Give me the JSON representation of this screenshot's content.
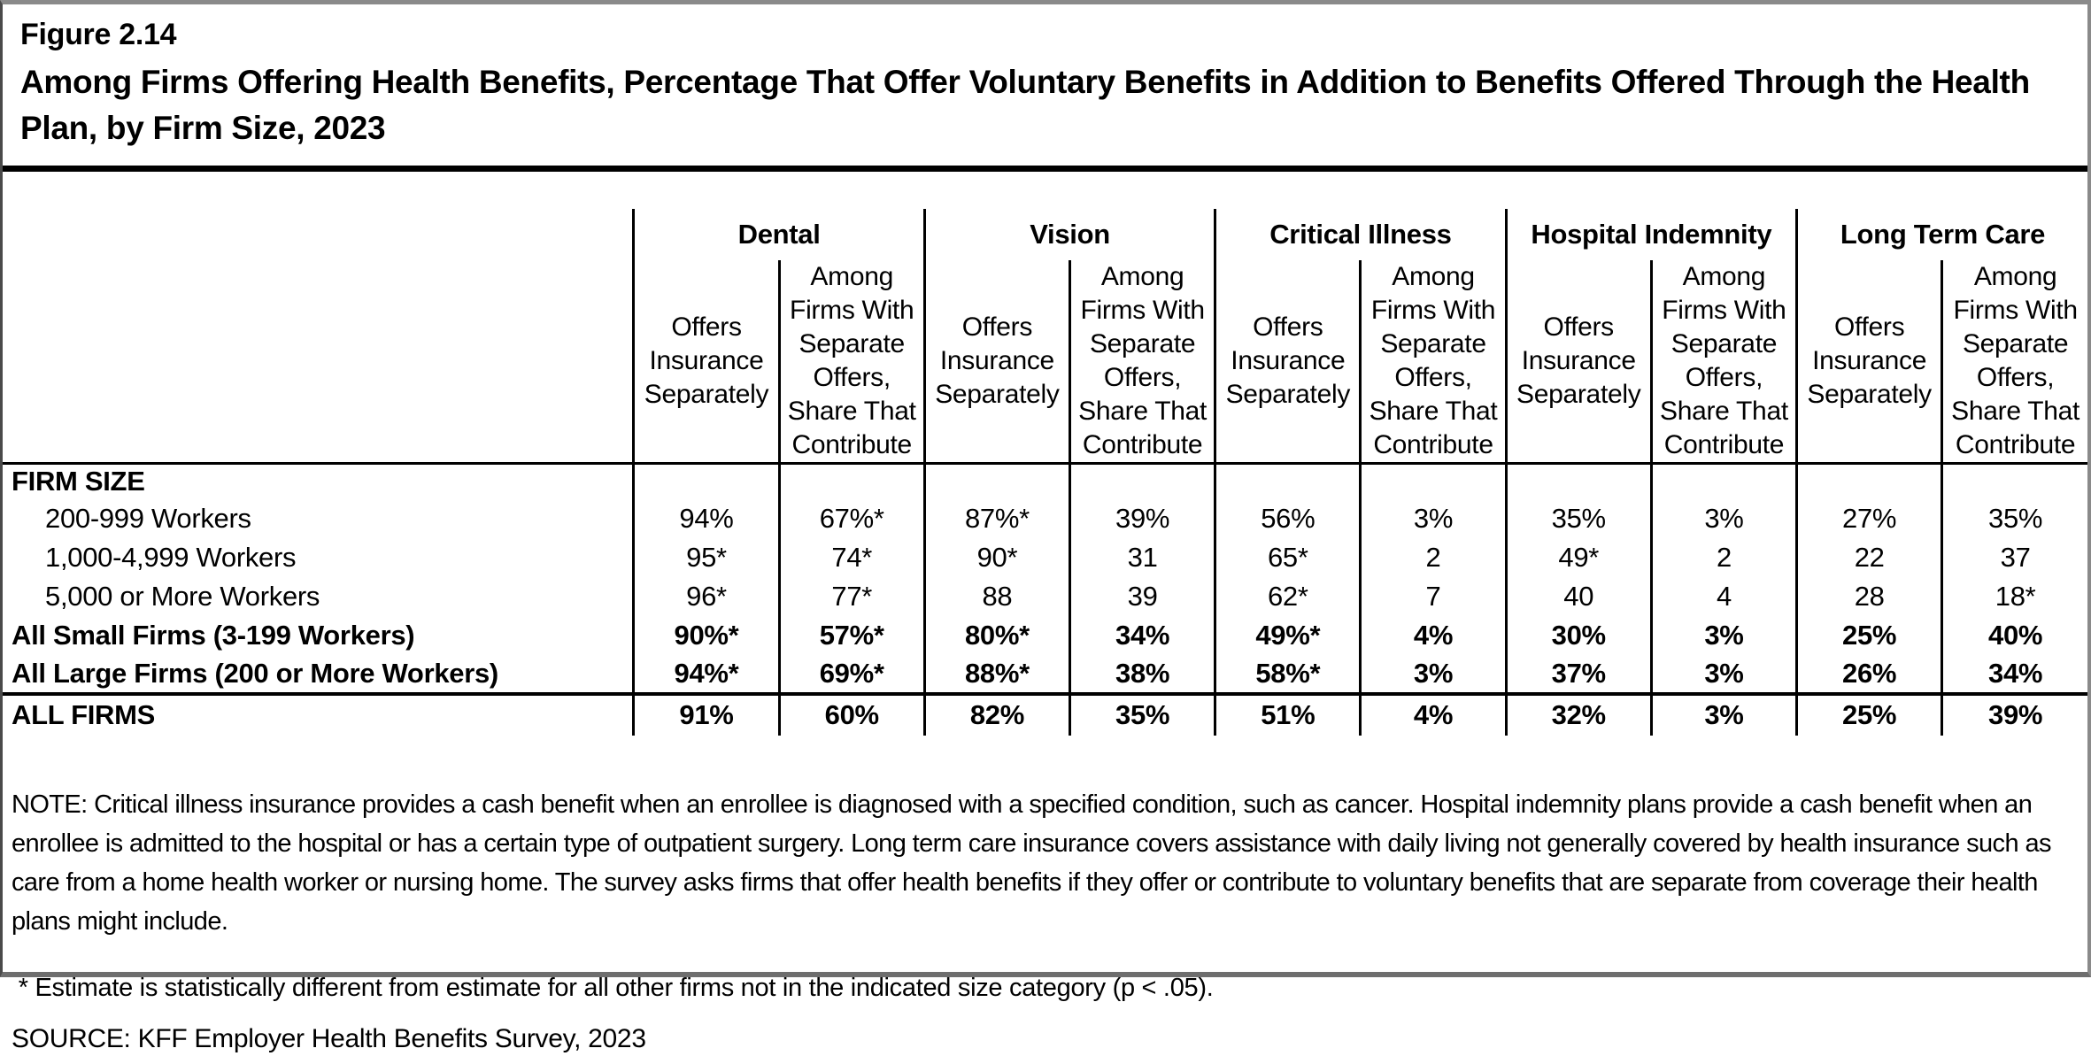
{
  "header": {
    "figure_label": "Figure 2.14",
    "title": "Among Firms Offering Health Benefits, Percentage That Offer Voluntary Benefits in Addition to Benefits Offered Through the Health Plan, by Firm Size, 2023"
  },
  "colors": {
    "text": "#000000",
    "rules": "#000000",
    "chrome_gray": "#8a8a8a",
    "background": "#ffffff"
  },
  "chart_data": {
    "type": "table",
    "title": "Among Firms Offering Health Benefits, Percentage That Offer Voluntary Benefits in Addition to Benefits Offered Through the Health Plan, by Firm Size, 2023",
    "figure_label": "Figure 2.14",
    "column_groups": [
      "Dental",
      "Vision",
      "Critical Illness",
      "Hospital Indemnity",
      "Long Term Care"
    ],
    "sub_columns": [
      "Offers Insurance Separately",
      "Among Firms With Separate Offers, Share That Contribute"
    ],
    "section_header": "FIRM SIZE",
    "rows": [
      {
        "label": "200-999 Workers",
        "indent": true,
        "bold": false,
        "values": [
          "94%",
          "67%*",
          "87%*",
          "39%",
          "56%",
          "3%",
          "35%",
          "3%",
          "27%",
          "35%"
        ]
      },
      {
        "label": "1,000-4,999 Workers",
        "indent": true,
        "bold": false,
        "values": [
          "95*",
          "74*",
          "90*",
          "31",
          "65*",
          "2",
          "49*",
          "2",
          "22",
          "37"
        ]
      },
      {
        "label": "5,000 or More Workers",
        "indent": true,
        "bold": false,
        "values": [
          "96*",
          "77*",
          "88",
          "39",
          "62*",
          "7",
          "40",
          "4",
          "28",
          "18*"
        ]
      },
      {
        "label": "All Small Firms (3-199 Workers)",
        "indent": false,
        "bold": true,
        "values": [
          "90%*",
          "57%*",
          "80%*",
          "34%",
          "49%*",
          "4%",
          "30%",
          "3%",
          "25%",
          "40%"
        ]
      },
      {
        "label": "All Large Firms (200 or More Workers)",
        "indent": false,
        "bold": true,
        "values": [
          "94%*",
          "69%*",
          "88%*",
          "38%",
          "58%*",
          "3%",
          "37%",
          "3%",
          "26%",
          "34%"
        ]
      }
    ],
    "total_row": {
      "label": "ALL FIRMS",
      "values": [
        "91%",
        "60%",
        "82%",
        "35%",
        "51%",
        "4%",
        "32%",
        "3%",
        "25%",
        "39%"
      ]
    }
  },
  "notes": {
    "note": "NOTE: Critical illness insurance provides a cash benefit when an enrollee is diagnosed with a specified condition, such as cancer. Hospital indemnity plans provide a cash benefit when an enrollee is admitted to the hospital or has a certain type of outpatient surgery. Long term care insurance covers assistance with daily living not generally covered by health insurance such as care from a home health worker or nursing home. The survey asks firms that offer health benefits if they offer or contribute to voluntary benefits that are separate from coverage their health plans might include.",
    "footnote": " * Estimate is statistically different from estimate for all other firms not in the indicated size category (p < .05).",
    "source": "SOURCE: KFF Employer Health Benefits Survey, 2023"
  }
}
